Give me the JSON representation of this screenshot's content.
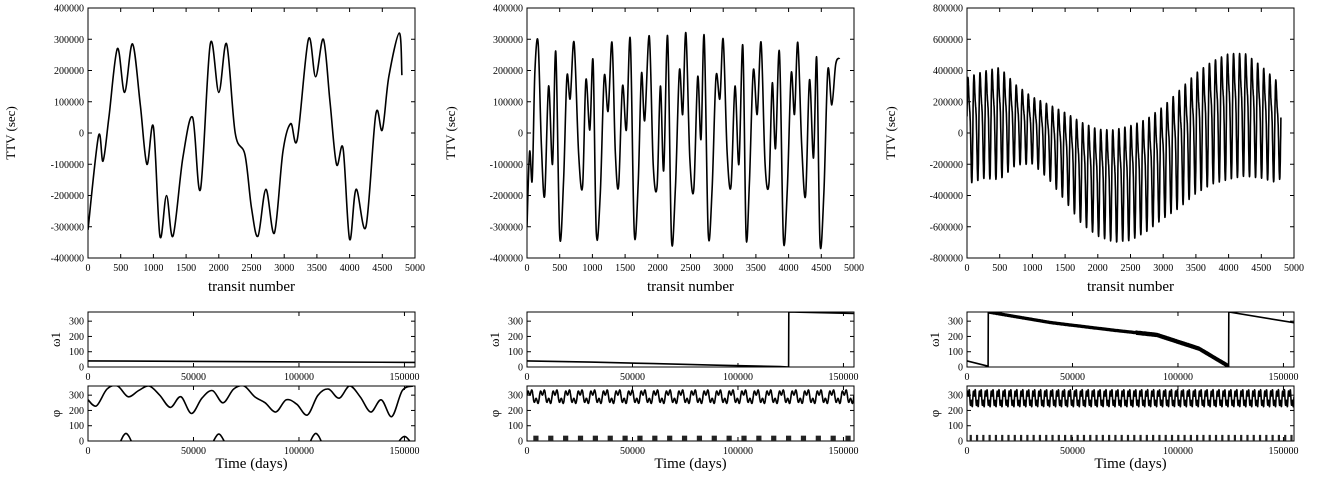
{
  "figure": {
    "panels": [
      "left",
      "middle",
      "right"
    ]
  },
  "chart_data": [
    {
      "panel": "left",
      "type": "line",
      "xlabel": "transit number",
      "ylabel": "TTV (sec)",
      "xlim": [
        0,
        5000
      ],
      "ylim": [
        -400000,
        400000
      ],
      "xticks": [
        0,
        500,
        1000,
        1500,
        2000,
        2500,
        3000,
        3500,
        4000,
        4500,
        5000
      ],
      "yticks": [
        -400000,
        -300000,
        -200000,
        -100000,
        0,
        100000,
        200000,
        300000,
        400000
      ],
      "x": [
        0,
        160,
        230,
        320,
        450,
        560,
        680,
        800,
        900,
        1000,
        1100,
        1200,
        1300,
        1450,
        1600,
        1720,
        1870,
        2000,
        2120,
        2250,
        2400,
        2500,
        2600,
        2720,
        2850,
        2980,
        3100,
        3200,
        3370,
        3480,
        3600,
        3700,
        3800,
        3900,
        4000,
        4100,
        4250,
        4400,
        4500,
        4600,
        4760,
        4800
      ],
      "values": [
        -310000,
        -10000,
        -90000,
        50000,
        270000,
        130000,
        285000,
        90000,
        -100000,
        20000,
        -330000,
        -200000,
        -330000,
        -80000,
        50000,
        -180000,
        285000,
        130000,
        285000,
        0,
        -70000,
        -240000,
        -330000,
        -180000,
        -320000,
        -60000,
        30000,
        -20000,
        300000,
        180000,
        300000,
        100000,
        -100000,
        -50000,
        -340000,
        -180000,
        -300000,
        60000,
        10000,
        180000,
        320000,
        185000
      ]
    },
    {
      "panel": "middle",
      "type": "line",
      "xlabel": "transit number",
      "ylabel": "TTV (sec)",
      "xlim": [
        0,
        5000
      ],
      "ylim": [
        -400000,
        400000
      ],
      "xticks": [
        0,
        500,
        1000,
        1500,
        2000,
        2500,
        3000,
        3500,
        4000,
        4500,
        5000
      ],
      "yticks": [
        -400000,
        -300000,
        -200000,
        -100000,
        0,
        100000,
        200000,
        300000,
        400000
      ],
      "x": [
        0,
        40,
        80,
        120,
        170,
        220,
        270,
        330,
        390,
        440,
        500,
        560,
        610,
        660,
        720,
        790,
        850,
        900,
        960,
        1010,
        1060,
        1120,
        1180,
        1240,
        1300,
        1350,
        1400,
        1460,
        1520,
        1580,
        1640,
        1700,
        1750,
        1800,
        1870,
        1930,
        1990,
        2040,
        2090,
        2150,
        2210,
        2270,
        2330,
        2380,
        2430,
        2490,
        2550,
        2610,
        2660,
        2710,
        2770,
        2830,
        2890,
        2950,
        3000,
        3060,
        3120,
        3180,
        3240,
        3300,
        3350,
        3400,
        3460,
        3520,
        3580,
        3640,
        3700,
        3750,
        3800,
        3860,
        3920,
        3980,
        4040,
        4090,
        4140,
        4200,
        4260,
        4320,
        4380,
        4430,
        4480,
        4540,
        4600,
        4660,
        4720,
        4780
      ],
      "values": [
        -300000,
        -60000,
        -150000,
        190000,
        290000,
        -40000,
        -200000,
        150000,
        -100000,
        260000,
        -330000,
        -150000,
        180000,
        110000,
        290000,
        -70000,
        -170000,
        170000,
        10000,
        230000,
        -320000,
        -200000,
        180000,
        70000,
        290000,
        -60000,
        -170000,
        150000,
        10000,
        300000,
        -320000,
        -160000,
        190000,
        40000,
        310000,
        -100000,
        -170000,
        150000,
        -120000,
        310000,
        -340000,
        -170000,
        200000,
        60000,
        320000,
        -80000,
        -180000,
        180000,
        -20000,
        310000,
        -320000,
        -180000,
        180000,
        110000,
        300000,
        -60000,
        -170000,
        150000,
        -100000,
        280000,
        -330000,
        -160000,
        200000,
        60000,
        290000,
        -100000,
        -160000,
        160000,
        -50000,
        260000,
        -340000,
        -180000,
        190000,
        60000,
        290000,
        -40000,
        -200000,
        170000,
        -80000,
        240000,
        -350000,
        -190000,
        200000,
        90000,
        220000,
        240000
      ]
    },
    {
      "panel": "right",
      "type": "line",
      "xlabel": "transit number",
      "ylabel": "TTV (sec)",
      "xlim": [
        0,
        5000
      ],
      "ylim": [
        -800000,
        800000
      ],
      "xticks": [
        0,
        500,
        1000,
        1500,
        2000,
        2500,
        3000,
        3500,
        4000,
        4500,
        5000
      ],
      "yticks": [
        -800000,
        -600000,
        -400000,
        -200000,
        0,
        200000,
        400000,
        600000,
        800000
      ],
      "envelope": {
        "x": [
          0,
          250,
          500,
          750,
          1000,
          1250,
          1500,
          1750,
          2000,
          2250,
          2500,
          2750,
          3000,
          3250,
          3500,
          3750,
          4000,
          4250,
          4500,
          4750,
          4800
        ],
        "center": [
          50000,
          90000,
          100000,
          80000,
          40000,
          -30000,
          -120000,
          -220000,
          -280000,
          -300000,
          -280000,
          -230000,
          -150000,
          -60000,
          40000,
          110000,
          150000,
          160000,
          110000,
          40000,
          50000
        ],
        "amplitude": [
          400000,
          400000,
          420000,
          300000,
          250000,
          280000,
          330000,
          380000,
          400000,
          420000,
          430000,
          420000,
          420000,
          440000,
          450000,
          460000,
          470000,
          460000,
          420000,
          380000,
          350000
        ],
        "cycles": 52
      }
    },
    {
      "panel": "left-omega",
      "type": "line",
      "ylabel": "ω1",
      "xlim": [
        0,
        155000
      ],
      "ylim": [
        0,
        360
      ],
      "xticks": [
        0,
        50000,
        100000,
        150000
      ],
      "yticks": [
        0,
        100,
        200,
        300
      ],
      "x": [
        0,
        155000
      ],
      "values": [
        40,
        30
      ]
    },
    {
      "panel": "middle-omega",
      "type": "line",
      "ylabel": "ω1",
      "xlim": [
        0,
        155000
      ],
      "ylim": [
        0,
        360
      ],
      "xticks": [
        0,
        50000,
        100000,
        150000
      ],
      "yticks": [
        0,
        100,
        200,
        300
      ],
      "x": [
        0,
        30000,
        60000,
        90000,
        120000,
        124000,
        124100,
        155000
      ],
      "values": [
        40,
        32,
        22,
        12,
        3,
        0,
        360,
        350
      ]
    },
    {
      "panel": "right-omega",
      "type": "line",
      "ylabel": "ω1",
      "xlim": [
        0,
        155000
      ],
      "ylim": [
        0,
        360
      ],
      "xticks": [
        0,
        50000,
        100000,
        150000
      ],
      "yticks": [
        0,
        100,
        200,
        300
      ],
      "x": [
        0,
        10000,
        10100,
        40000,
        70000,
        90000,
        110000,
        124000,
        124100,
        155000
      ],
      "values": [
        40,
        5,
        360,
        290,
        240,
        210,
        120,
        5,
        360,
        290
      ]
    },
    {
      "panel": "left-phi",
      "type": "line",
      "ylabel": "φ",
      "xlabel": "Time (days)",
      "xlim": [
        0,
        155000
      ],
      "ylim": [
        0,
        360
      ],
      "xticks": [
        0,
        50000,
        100000,
        150000
      ],
      "yticks": [
        0,
        100,
        200,
        300
      ],
      "upper": {
        "x": [
          0,
          4000,
          9000,
          14000,
          19000,
          24000,
          29000,
          34000,
          39000,
          44000,
          49000,
          54000,
          59000,
          64000,
          69000,
          74000,
          79000,
          84000,
          89000,
          94000,
          99000,
          104000,
          109000,
          114000,
          119000,
          124000,
          129000,
          134000,
          139000,
          144000,
          149000,
          154000
        ],
        "values": [
          270,
          230,
          340,
          360,
          290,
          330,
          360,
          300,
          220,
          290,
          180,
          280,
          330,
          250,
          340,
          360,
          290,
          250,
          190,
          270,
          240,
          170,
          300,
          340,
          280,
          360,
          290,
          190,
          270,
          160,
          330,
          360
        ]
      },
      "bumps": {
        "x": [
          18000,
          62000,
          108000,
          150000
        ],
        "values": [
          50,
          45,
          50,
          30
        ]
      }
    },
    {
      "panel": "middle-phi",
      "type": "line",
      "ylabel": "φ",
      "xlabel": "Time (days)",
      "xlim": [
        0,
        155000
      ],
      "ylim": [
        0,
        360
      ],
      "xticks": [
        0,
        50000,
        100000,
        150000
      ],
      "yticks": [
        0,
        100,
        200,
        300
      ],
      "band": {
        "center": 290,
        "amplitude": 55,
        "cycles": 26
      },
      "bumps": {
        "count": 22,
        "height": 35
      }
    },
    {
      "panel": "right-phi",
      "type": "line",
      "ylabel": "φ",
      "xlabel": "Time (days)",
      "xlim": [
        0,
        155000
      ],
      "ylim": [
        0,
        360
      ],
      "xticks": [
        0,
        50000,
        100000,
        150000
      ],
      "yticks": [
        0,
        100,
        200,
        300
      ],
      "band": {
        "center": 280,
        "amplitude": 70,
        "cycles": 55
      },
      "bumps": {
        "count": 52,
        "height": 40
      }
    }
  ]
}
